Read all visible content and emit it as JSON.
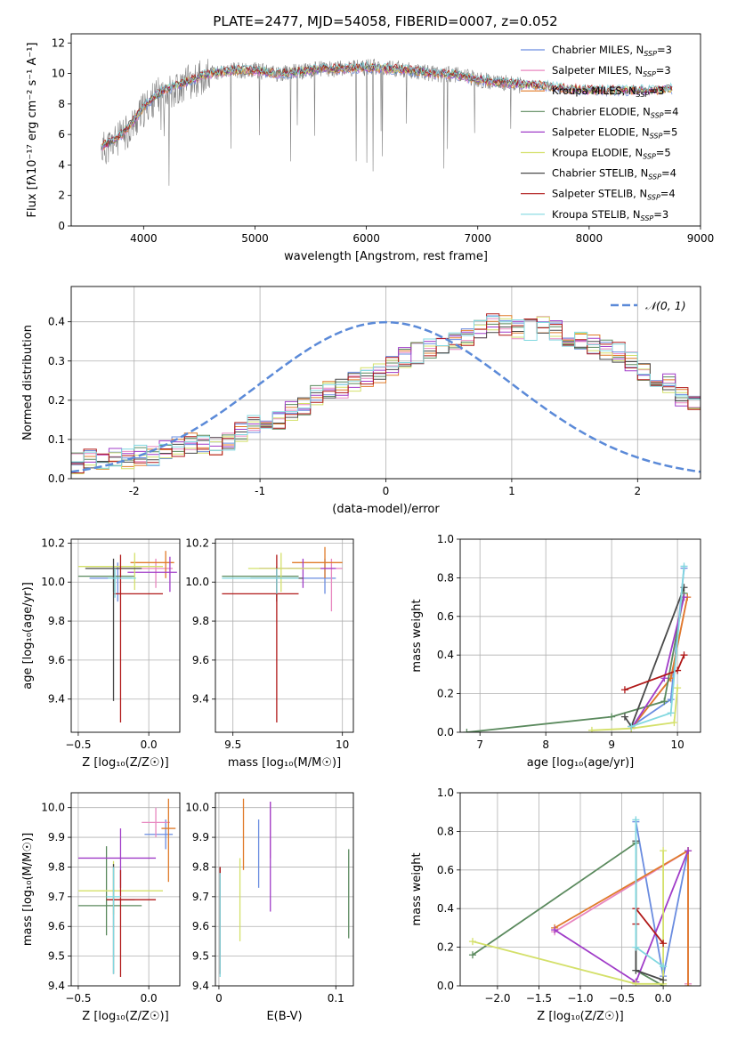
{
  "title": "PLATE=2477, MJD=54058, FIBERID=0007, z=0.052",
  "series_styles": [
    {
      "name": "Chabrier MILES, N_SSP=3",
      "color": "#6a8ce0"
    },
    {
      "name": "Salpeter MILES, N_SSP=3",
      "color": "#e887c0"
    },
    {
      "name": "Kroupa MILES, N_SSP=3",
      "color": "#e07b2a"
    },
    {
      "name": "Chabrier ELODIE, N_SSP=4",
      "color": "#5b8a5e"
    },
    {
      "name": "Salpeter ELODIE, N_SSP=5",
      "color": "#a03cc8"
    },
    {
      "name": "Kroupa ELODIE, N_SSP=5",
      "color": "#d4e06a"
    },
    {
      "name": "Chabrier STELIB, N_SSP=4",
      "color": "#4a4a4a"
    },
    {
      "name": "Salpeter STELIB, N_SSP=4",
      "color": "#b01818"
    },
    {
      "name": "Kroupa STELIB, N_SSP=3",
      "color": "#82d8e0"
    }
  ],
  "chart_data": [
    {
      "id": "spectrum",
      "type": "line",
      "xlabel": "wavelength [Angstrom, rest frame]",
      "ylabel": "Flux [fλ10⁻¹⁷ erg cm⁻² s⁻¹ A⁻¹]",
      "xlim": [
        3350,
        9000
      ],
      "ylim": [
        0,
        12.6
      ],
      "xticks": [
        4000,
        5000,
        6000,
        7000,
        8000,
        9000
      ],
      "yticks": [
        0,
        2,
        4,
        6,
        8,
        10,
        12
      ],
      "grid": false,
      "legend": "upper right",
      "data_color": "#808080",
      "data_x": [
        3620,
        3700,
        3800,
        3900,
        4000,
        4100,
        4200,
        4300,
        4400,
        4500,
        4600,
        4800,
        5000,
        5200,
        5400,
        5600,
        5800,
        6000,
        6200,
        6400,
        6600,
        6800,
        7000,
        7200,
        7400
      ],
      "data_y": [
        5.0,
        5.3,
        5.8,
        6.6,
        7.6,
        8.4,
        8.9,
        9.0,
        9.4,
        9.7,
        10.0,
        10.2,
        10.2,
        10.0,
        10.1,
        10.3,
        10.3,
        10.4,
        10.4,
        10.2,
        10.0,
        9.9,
        9.6,
        9.4,
        9.2
      ],
      "model_x": [
        3620,
        3700,
        3800,
        3900,
        4000,
        4100,
        4200,
        4300,
        4400,
        4500,
        4600,
        4800,
        5000,
        5200,
        5400,
        5600,
        5800,
        6000,
        6200,
        6400,
        6600,
        6800,
        7000,
        7200,
        7400,
        7600,
        7800,
        8000,
        8200,
        8400,
        8600,
        8750
      ],
      "model_y": [
        5.2,
        5.5,
        6.0,
        6.8,
        7.8,
        8.5,
        9.0,
        9.2,
        9.5,
        9.8,
        10.0,
        10.2,
        10.2,
        10.0,
        10.1,
        10.3,
        10.3,
        10.4,
        10.3,
        10.2,
        10.0,
        9.9,
        9.6,
        9.4,
        9.3,
        9.2,
        9.0,
        8.9,
        8.9,
        8.9,
        8.9,
        9.0
      ]
    },
    {
      "id": "residuals",
      "type": "step",
      "xlabel": "(data-model)/error",
      "ylabel": "Normed distribution",
      "xlim": [
        -2.5,
        2.5
      ],
      "ylim": [
        0,
        0.49
      ],
      "xticks": [
        -2,
        -1,
        0,
        1,
        2
      ],
      "yticks": [
        0.0,
        0.1,
        0.2,
        0.3,
        0.4
      ],
      "grid": true,
      "legend": "upper right",
      "gaussian_label": "𝒩(0, 1)",
      "gaussian_color": "#5b8ad8",
      "bin_width": 0.1,
      "bin_start": -2.5,
      "histogram": [
        0.04,
        0.05,
        0.04,
        0.05,
        0.05,
        0.06,
        0.06,
        0.07,
        0.08,
        0.09,
        0.09,
        0.08,
        0.09,
        0.12,
        0.14,
        0.14,
        0.15,
        0.17,
        0.19,
        0.21,
        0.23,
        0.23,
        0.25,
        0.26,
        0.27,
        0.29,
        0.31,
        0.32,
        0.33,
        0.34,
        0.35,
        0.36,
        0.38,
        0.4,
        0.39,
        0.38,
        0.38,
        0.39,
        0.38,
        0.36,
        0.35,
        0.34,
        0.33,
        0.32,
        0.3,
        0.27,
        0.26,
        0.24,
        0.21,
        0.19,
        0.17,
        0.16,
        0.14,
        0.13,
        0.11,
        0.09,
        0.08,
        0.07,
        0.06,
        0.05
      ]
    },
    {
      "id": "z-age",
      "type": "errorbar",
      "xlabel": "Z [log₁₀(Z/Z☉)]",
      "ylabel": "age  [log₁₀(age/yr)]",
      "xlim": [
        -0.55,
        0.22
      ],
      "ylim": [
        9.23,
        10.22
      ],
      "xticks": [
        -0.5,
        0.0
      ],
      "xticklabels": [
        "−0.5",
        "0.0"
      ],
      "yticks": [
        9.4,
        9.6,
        9.8,
        10.0,
        10.2
      ],
      "grid": true,
      "points": [
        {
          "series": 0,
          "x": -0.22,
          "y": 10.02,
          "xerr": [
            0.2,
            0.1
          ],
          "yerr": [
            0.12,
            0.08
          ]
        },
        {
          "series": 1,
          "x": 0.05,
          "y": 10.07,
          "xerr": [
            0.3,
            0.12
          ],
          "yerr": [
            0.1,
            0.05
          ]
        },
        {
          "series": 2,
          "x": 0.12,
          "y": 10.1,
          "xerr": [
            0.25,
            0.06
          ],
          "yerr": [
            0.08,
            0.06
          ]
        },
        {
          "series": 3,
          "x": -0.25,
          "y": 10.03,
          "xerr": [
            0.25,
            0.15
          ],
          "yerr": [
            0.08,
            0.05
          ]
        },
        {
          "series": 4,
          "x": 0.15,
          "y": 10.05,
          "xerr": [
            0.3,
            0.05
          ],
          "yerr": [
            0.1,
            0.08
          ]
        },
        {
          "series": 5,
          "x": -0.1,
          "y": 10.08,
          "xerr": [
            0.4,
            0.2
          ],
          "yerr": [
            0.12,
            0.07
          ]
        },
        {
          "series": 6,
          "x": -0.25,
          "y": 10.07,
          "xerr": [
            0.2,
            0.2
          ],
          "yerr": [
            0.68,
            0.05
          ]
        },
        {
          "series": 7,
          "x": -0.2,
          "y": 9.94,
          "xerr": [
            0.05,
            0.3
          ],
          "yerr": [
            0.66,
            0.2
          ]
        },
        {
          "series": 8,
          "x": -0.24,
          "y": 10.02,
          "xerr": [
            0.05,
            0.15
          ],
          "yerr": [
            0.1,
            0.05
          ]
        }
      ]
    },
    {
      "id": "mass-age",
      "type": "errorbar",
      "xlabel": "mass [log₁₀(M/M☉)]",
      "ylabel": "",
      "xlim": [
        9.42,
        10.05
      ],
      "ylim": [
        9.23,
        10.22
      ],
      "xticks": [
        9.5,
        10.0
      ],
      "yticks": [
        9.4,
        9.6,
        9.8,
        10.0,
        10.2
      ],
      "grid": true,
      "points": [
        {
          "series": 0,
          "x": 9.92,
          "y": 10.02,
          "xerr": [
            0.1,
            0.05
          ],
          "yerr": [
            0.08,
            0.1
          ]
        },
        {
          "series": 1,
          "x": 9.95,
          "y": 10.07,
          "xerr": [
            0.2,
            0.05
          ],
          "yerr": [
            0.22,
            0.05
          ]
        },
        {
          "series": 2,
          "x": 9.92,
          "y": 10.1,
          "xerr": [
            0.15,
            0.08
          ],
          "yerr": [
            0.08,
            0.08
          ]
        },
        {
          "series": 3,
          "x": 9.7,
          "y": 10.03,
          "xerr": [
            0.25,
            0.1
          ],
          "yerr": [
            0.08,
            0.05
          ]
        },
        {
          "series": 4,
          "x": 9.82,
          "y": 10.07,
          "xerr": [
            0.2,
            0.15
          ],
          "yerr": [
            0.1,
            0.05
          ]
        },
        {
          "series": 5,
          "x": 9.72,
          "y": 10.07,
          "xerr": [
            0.15,
            0.18
          ],
          "yerr": [
            0.12,
            0.08
          ]
        },
        {
          "series": 6,
          "x": 9.7,
          "y": 10.02,
          "xerr": [
            0.12,
            0.12
          ],
          "yerr": [
            0.12,
            0.05
          ]
        },
        {
          "series": 7,
          "x": 9.7,
          "y": 9.94,
          "xerr": [
            0.25,
            0.1
          ],
          "yerr": [
            0.66,
            0.2
          ]
        },
        {
          "series": 8,
          "x": 9.7,
          "y": 10.02,
          "xerr": [
            0.25,
            0.1
          ],
          "yerr": [
            0.08,
            0.05
          ]
        }
      ]
    },
    {
      "id": "age-weight",
      "type": "line",
      "xlabel": "age  [log₁₀(age/yr)]",
      "ylabel": "mass weight",
      "xlim": [
        6.7,
        10.35
      ],
      "ylim": [
        0,
        1.0
      ],
      "xticks": [
        7,
        8,
        9,
        10
      ],
      "yticks": [
        0.0,
        0.2,
        0.4,
        0.6,
        0.8,
        1.0
      ],
      "grid": true,
      "series": [
        {
          "series": 0,
          "x": [
            9.3,
            9.9,
            10.1
          ],
          "y": [
            0.03,
            0.17,
            0.85
          ]
        },
        {
          "series": 1,
          "x": [
            9.3,
            9.9,
            10.15
          ],
          "y": [
            0.02,
            0.28,
            0.7
          ]
        },
        {
          "series": 2,
          "x": [
            9.3,
            9.9,
            10.15
          ],
          "y": [
            0.02,
            0.28,
            0.7
          ]
        },
        {
          "series": 3,
          "x": [
            6.8,
            9.0,
            9.8,
            10.1
          ],
          "y": [
            0.0,
            0.08,
            0.16,
            0.72
          ]
        },
        {
          "series": 4,
          "x": [
            9.3,
            9.8,
            10.1
          ],
          "y": [
            0.02,
            0.28,
            0.7
          ]
        },
        {
          "series": 5,
          "x": [
            8.7,
            9.3,
            9.95,
            10.0
          ],
          "y": [
            0.01,
            0.02,
            0.05,
            0.23
          ]
        },
        {
          "series": 6,
          "x": [
            9.2,
            9.3,
            10.1
          ],
          "y": [
            0.08,
            0.03,
            0.75
          ]
        },
        {
          "series": 7,
          "x": [
            9.2,
            10.0,
            10.1
          ],
          "y": [
            0.22,
            0.32,
            0.4
          ]
        },
        {
          "series": 8,
          "x": [
            9.3,
            9.9,
            10.1
          ],
          "y": [
            0.03,
            0.1,
            0.86
          ]
        }
      ]
    },
    {
      "id": "z-mass",
      "type": "errorbar",
      "xlabel": "Z [log₁₀(Z/Z☉)]",
      "ylabel": "mass [log₁₀(M/M☉)]",
      "xlim": [
        -0.55,
        0.22
      ],
      "ylim": [
        9.4,
        10.05
      ],
      "xticks": [
        -0.5,
        0.0
      ],
      "xticklabels": [
        "−0.5",
        "0.0"
      ],
      "yticks": [
        9.4,
        9.5,
        9.6,
        9.7,
        9.8,
        9.9,
        10.0
      ],
      "grid": true,
      "points": [
        {
          "series": 0,
          "x": 0.12,
          "y": 9.91,
          "xerr": [
            0.15,
            0.05
          ],
          "yerr": [
            0.05,
            0.05
          ]
        },
        {
          "series": 1,
          "x": 0.05,
          "y": 9.95,
          "xerr": [
            0.1,
            0.1
          ],
          "yerr": [
            0.05,
            0.05
          ]
        },
        {
          "series": 2,
          "x": 0.14,
          "y": 9.93,
          "xerr": [
            0.05,
            0.05
          ],
          "yerr": [
            0.18,
            0.1
          ]
        },
        {
          "series": 3,
          "x": -0.3,
          "y": 9.67,
          "xerr": [
            0.2,
            0.25
          ],
          "yerr": [
            0.1,
            0.2
          ]
        },
        {
          "series": 4,
          "x": -0.2,
          "y": 9.83,
          "xerr": [
            0.3,
            0.25
          ],
          "yerr": [
            0.1,
            0.1
          ]
        },
        {
          "series": 5,
          "x": -0.25,
          "y": 9.72,
          "xerr": [
            0.25,
            0.35
          ],
          "yerr": [
            0.08,
            0.1
          ]
        },
        {
          "series": 6,
          "x": -0.25,
          "y": 9.69,
          "xerr": [
            0.05,
            0.15
          ],
          "yerr": [
            0.25,
            0.12
          ]
        },
        {
          "series": 7,
          "x": -0.2,
          "y": 9.69,
          "xerr": [
            0.1,
            0.25
          ],
          "yerr": [
            0.26,
            0.1
          ]
        },
        {
          "series": 8,
          "x": -0.25,
          "y": 9.7,
          "xerr": [
            0.05,
            0.05
          ],
          "yerr": [
            0.26,
            0.1
          ]
        }
      ]
    },
    {
      "id": "ebv-mass",
      "type": "errorbar",
      "xlabel": "E(B-V)",
      "ylabel": "",
      "xlim": [
        -0.003,
        0.115
      ],
      "ylim": [
        9.4,
        10.05
      ],
      "xticks": [
        0.0,
        0.1
      ],
      "yticks": [
        9.4,
        9.5,
        9.6,
        9.7,
        9.8,
        9.9,
        10.0
      ],
      "grid": true,
      "points": [
        {
          "series": 0,
          "x": 0.034,
          "y": 9.84,
          "xerr": [
            0,
            0
          ],
          "yerr": [
            0.11,
            0.12
          ]
        },
        {
          "series": 1,
          "x": 0.044,
          "y": 9.95,
          "xerr": [
            0,
            0
          ],
          "yerr": [
            0.12,
            0.07
          ]
        },
        {
          "series": 2,
          "x": 0.021,
          "y": 9.92,
          "xerr": [
            0,
            0
          ],
          "yerr": [
            0.13,
            0.11
          ]
        },
        {
          "series": 3,
          "x": 0.111,
          "y": 9.71,
          "xerr": [
            0,
            0
          ],
          "yerr": [
            0.15,
            0.15
          ]
        },
        {
          "series": 4,
          "x": 0.044,
          "y": 9.84,
          "xerr": [
            0,
            0
          ],
          "yerr": [
            0.19,
            0.18
          ]
        },
        {
          "series": 5,
          "x": 0.018,
          "y": 9.69,
          "xerr": [
            0,
            0
          ],
          "yerr": [
            0.14,
            0.14
          ]
        },
        {
          "series": 6,
          "x": 0.001,
          "y": 9.62,
          "xerr": [
            0,
            0
          ],
          "yerr": [
            0.18,
            0.18
          ]
        },
        {
          "series": 7,
          "x": 0.001,
          "y": 9.62,
          "xerr": [
            0,
            0
          ],
          "yerr": [
            0.18,
            0.18
          ]
        },
        {
          "series": 8,
          "x": 0.001,
          "y": 9.6,
          "xerr": [
            0,
            0
          ],
          "yerr": [
            0.17,
            0.18
          ]
        }
      ]
    },
    {
      "id": "z-weight",
      "type": "line",
      "xlabel": "Z [log₁₀(Z/Z☉)]",
      "ylabel": "mass weight",
      "xlim": [
        -2.45,
        0.45
      ],
      "ylim": [
        0,
        1.0
      ],
      "xticks": [
        -2.0,
        -1.5,
        -1.0,
        -0.5,
        0.0
      ],
      "xticklabels": [
        "−2.0",
        "−1.5",
        "−1.0",
        "−0.5",
        "0.0"
      ],
      "yticks": [
        0.0,
        0.2,
        0.4,
        0.6,
        0.8,
        1.0
      ],
      "grid": true,
      "series": [
        {
          "series": 0,
          "x": [
            -0.33,
            0.0,
            0.3
          ],
          "y": [
            0.85,
            0.05,
            0.7
          ]
        },
        {
          "series": 1,
          "x": [
            -1.31,
            0.3,
            0.3
          ],
          "y": [
            0.28,
            0.7,
            0.01
          ]
        },
        {
          "series": 2,
          "x": [
            -1.31,
            0.3,
            0.3
          ],
          "y": [
            0.3,
            0.7,
            0.0
          ]
        },
        {
          "series": 3,
          "x": [
            -2.3,
            -0.33,
            -0.33,
            0.0
          ],
          "y": [
            0.16,
            0.74,
            0.08,
            0.0
          ]
        },
        {
          "series": 4,
          "x": [
            -1.31,
            -0.33,
            0.3
          ],
          "y": [
            0.29,
            0.02,
            0.7
          ]
        },
        {
          "series": 5,
          "x": [
            -2.3,
            -0.33,
            0.0,
            0.0
          ],
          "y": [
            0.23,
            0.01,
            0.01,
            0.7
          ]
        },
        {
          "series": 6,
          "x": [
            -0.33,
            -0.33,
            0.0
          ],
          "y": [
            0.75,
            0.08,
            0.03
          ]
        },
        {
          "series": 7,
          "x": [
            -0.33,
            -0.33,
            0.0
          ],
          "y": [
            0.32,
            0.4,
            0.22
          ]
        },
        {
          "series": 8,
          "x": [
            -0.33,
            -0.33,
            0.0
          ],
          "y": [
            0.86,
            0.2,
            0.1
          ]
        }
      ]
    }
  ]
}
